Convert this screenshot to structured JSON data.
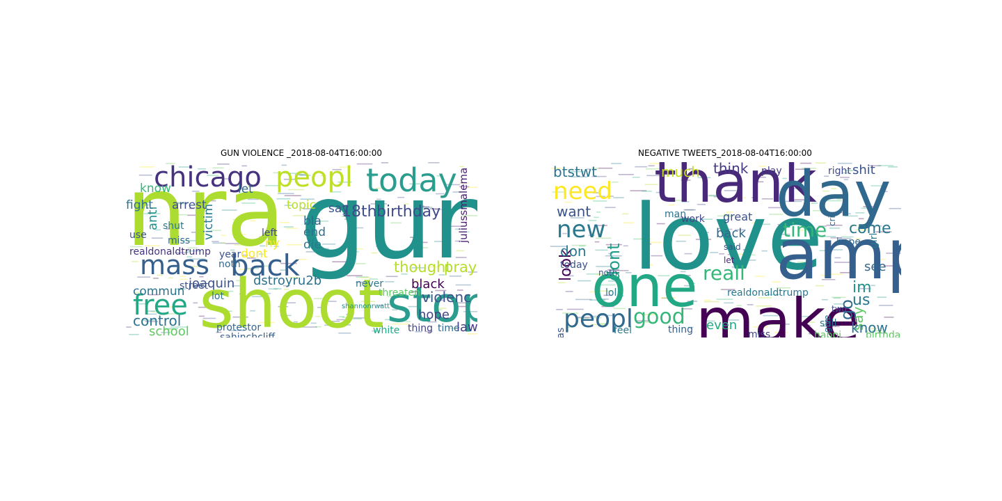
{
  "panels": [
    {
      "title": "GUN VIOLENCE _2018-08-04T16:00:00",
      "words": [
        {
          "text": "nra",
          "color": "#addc30"
        },
        {
          "text": "gun",
          "color": "#21918c"
        },
        {
          "text": "shoot",
          "color": "#addc30"
        },
        {
          "text": "stop",
          "color": "#2a9d8e"
        },
        {
          "text": "today",
          "color": "#2a9d8e"
        },
        {
          "text": "chicago",
          "color": "#46327e"
        },
        {
          "text": "peopl",
          "color": "#bddf26"
        },
        {
          "text": "back",
          "color": "#355f8d"
        },
        {
          "text": "mass",
          "color": "#355f8d"
        },
        {
          "text": "free",
          "color": "#22a884"
        },
        {
          "text": "thought",
          "color": "#b5de2b"
        },
        {
          "text": "prayer",
          "color": "#b5de2b"
        },
        {
          "text": "18th",
          "color": "#3e4a89"
        },
        {
          "text": "birthday",
          "color": "#3e4a89"
        },
        {
          "text": "violenc",
          "color": "#3b528b"
        },
        {
          "text": "control",
          "color": "#2c728e"
        },
        {
          "text": "school",
          "color": "#5ec962"
        },
        {
          "text": "dstroyru2b",
          "color": "#2c728e"
        },
        {
          "text": "black",
          "color": "#440154"
        },
        {
          "text": "hope",
          "color": "#414487"
        },
        {
          "text": "law",
          "color": "#443983"
        },
        {
          "text": "joaquin",
          "color": "#3b528b"
        },
        {
          "text": "commun",
          "color": "#2c728e"
        },
        {
          "text": "victim",
          "color": "#2a788e"
        },
        {
          "text": "anti",
          "color": "#21918c"
        },
        {
          "text": "know",
          "color": "#35b779"
        },
        {
          "text": "fight",
          "color": "#2c728e"
        },
        {
          "text": "arrest",
          "color": "#3b528b"
        },
        {
          "text": "let",
          "color": "#31688e"
        },
        {
          "text": "topic",
          "color": "#b5de2b"
        },
        {
          "text": "say",
          "color": "#3b528b"
        },
        {
          "text": "end",
          "color": "#2c728e"
        },
        {
          "text": "bla",
          "color": "#31688e"
        },
        {
          "text": "die",
          "color": "#2a788e"
        },
        {
          "text": "left",
          "color": "#414487"
        },
        {
          "text": "ny",
          "color": "#fde725"
        },
        {
          "text": "dont",
          "color": "#fde725"
        },
        {
          "text": "year",
          "color": "#3b528b"
        },
        {
          "text": "noth",
          "color": "#31688e"
        },
        {
          "text": "miss",
          "color": "#31688e"
        },
        {
          "text": "shut",
          "color": "#2a788e"
        },
        {
          "text": "use",
          "color": "#3b528b"
        },
        {
          "text": "realdonaldtrump",
          "color": "#46327e"
        },
        {
          "text": "street",
          "color": "#3b528b"
        },
        {
          "text": "lot",
          "color": "#2c728e"
        },
        {
          "text": "protestor",
          "color": "#31688e"
        },
        {
          "text": "sahinchcliff",
          "color": "#355f8d"
        },
        {
          "text": "white",
          "color": "#22a884"
        },
        {
          "text": "thing",
          "color": "#414487"
        },
        {
          "text": "time",
          "color": "#31688e"
        },
        {
          "text": "threaten",
          "color": "#5ec962"
        },
        {
          "text": "never",
          "color": "#2a788e"
        },
        {
          "text": "juliussmalema",
          "color": "#481f70"
        },
        {
          "text": "shannonrwatt",
          "color": "#21918c"
        }
      ]
    },
    {
      "title": "NEGATIVE TWEETS_2018-08-04T16:00:00",
      "words": [
        {
          "text": "love",
          "color": "#21918c"
        },
        {
          "text": "thank",
          "color": "#482878"
        },
        {
          "text": "day",
          "color": "#31688e"
        },
        {
          "text": "amp",
          "color": "#355f8d"
        },
        {
          "text": "one",
          "color": "#22a884"
        },
        {
          "text": "make",
          "color": "#440154"
        },
        {
          "text": "need",
          "color": "#fde725"
        },
        {
          "text": "new",
          "color": "#2a788e"
        },
        {
          "text": "peopl",
          "color": "#31688e"
        },
        {
          "text": "good",
          "color": "#35b779"
        },
        {
          "text": "reall",
          "color": "#35b779"
        },
        {
          "text": "time",
          "color": "#35b779"
        },
        {
          "text": "btstwt",
          "color": "#2c728e"
        },
        {
          "text": "much",
          "color": "#c2df23"
        },
        {
          "text": "think",
          "color": "#443983"
        },
        {
          "text": "want",
          "color": "#3b528b"
        },
        {
          "text": "look",
          "color": "#440154"
        },
        {
          "text": "don",
          "color": "#2a788e"
        },
        {
          "text": "dont",
          "color": "#1f9e89"
        },
        {
          "text": "come",
          "color": "#2a788e"
        },
        {
          "text": "go",
          "color": "#31688e"
        },
        {
          "text": "im",
          "color": "#21918c"
        },
        {
          "text": "us",
          "color": "#2a788e"
        },
        {
          "text": "say",
          "color": "#5ec962"
        },
        {
          "text": "know",
          "color": "#2c728e"
        },
        {
          "text": "see",
          "color": "#31688e"
        },
        {
          "text": "shit",
          "color": "#3b528b"
        },
        {
          "text": "play",
          "color": "#443983"
        },
        {
          "text": "right",
          "color": "#3e4a89"
        },
        {
          "text": "great",
          "color": "#3b528b"
        },
        {
          "text": "back",
          "color": "#31688e"
        },
        {
          "text": "man",
          "color": "#2c728e"
        },
        {
          "text": "work",
          "color": "#414487"
        },
        {
          "text": "today",
          "color": "#3b528b"
        },
        {
          "text": "watch",
          "color": "#355f8d"
        },
        {
          "text": "even",
          "color": "#22a884"
        },
        {
          "text": "realdonaldtrump",
          "color": "#2a788e"
        },
        {
          "text": "happi",
          "color": "#5ec962"
        },
        {
          "text": "birthday",
          "color": "#5ec962"
        },
        {
          "text": "miss",
          "color": "#414487"
        },
        {
          "text": "pleas",
          "color": "#3b528b"
        },
        {
          "text": "feel",
          "color": "#2a788e"
        },
        {
          "text": "thing",
          "color": "#355f8d"
        },
        {
          "text": "still",
          "color": "#2c728e"
        },
        {
          "text": "hope",
          "color": "#31688e"
        },
        {
          "text": "lol",
          "color": "#2a788e"
        },
        {
          "text": "noth",
          "color": "#3b528b"
        },
        {
          "text": "cri",
          "color": "#31688e"
        },
        {
          "text": "girl",
          "color": "#2a788e"
        },
        {
          "text": "said",
          "color": "#3b528b"
        },
        {
          "text": "let",
          "color": "#482878"
        },
        {
          "text": "give",
          "color": "#2c728e"
        },
        {
          "text": "two",
          "color": "#3b528b"
        }
      ]
    }
  ]
}
